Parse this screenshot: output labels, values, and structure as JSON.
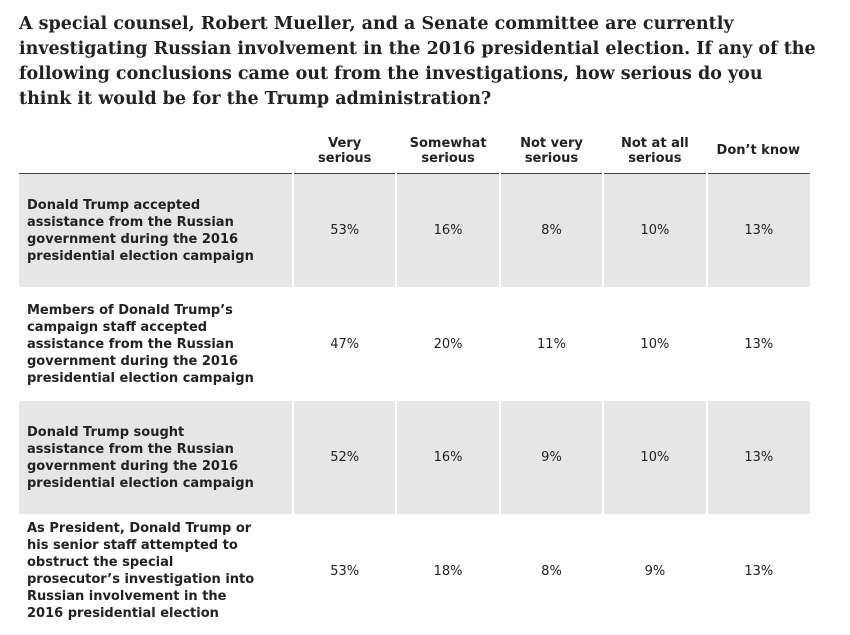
{
  "title": "A special counsel, Robert Mueller, and a Senate committee are currently investigating Russian involvement in the 2016 presidential election. If any of the following conclusions came out from the investigations, how serious do you think it would be for the Trump administration?",
  "columns": [
    "",
    "Very\nserious",
    "Somewhat\nserious",
    "Not very\nserious",
    "Not at all\nserious",
    "Don’t know"
  ],
  "rows": [
    {
      "label": "Donald Trump accepted assistance from the Russian government during the 2016 presidential election campaign",
      "cells": [
        "53%",
        "16%",
        "8%",
        "10%",
        "13%"
      ]
    },
    {
      "label": "Members of Donald Trump’s campaign staff accepted assistance from the Russian government during the 2016 presidential election campaign",
      "cells": [
        "47%",
        "20%",
        "11%",
        "10%",
        "13%"
      ]
    },
    {
      "label": "Donald Trump sought assistance from the Russian government during the 2016 presidential election campaign",
      "cells": [
        "52%",
        "16%",
        "9%",
        "10%",
        "13%"
      ]
    },
    {
      "label": "As President, Donald Trump or his senior staff attempted to obstruct the special prosecutor’s investigation into Russian involvement in the 2016 presidential election",
      "cells": [
        "53%",
        "18%",
        "8%",
        "9%",
        "13%"
      ]
    }
  ],
  "chart_data": {
    "type": "table",
    "title": "A special counsel, Robert Mueller, and a Senate committee are currently investigating Russian involvement in the 2016 presidential election. If any of the following conclusions came out from the investigations, how serious do you think it would be for the Trump administration?",
    "categories": [
      "Very serious",
      "Somewhat serious",
      "Not very serious",
      "Not at all serious",
      "Don’t know"
    ],
    "series": [
      {
        "name": "Donald Trump accepted assistance from the Russian government during the 2016 presidential election campaign",
        "values": [
          53,
          16,
          8,
          10,
          13
        ]
      },
      {
        "name": "Members of Donald Trump’s campaign staff accepted assistance from the Russian government during the 2016 presidential election campaign",
        "values": [
          47,
          20,
          11,
          10,
          13
        ]
      },
      {
        "name": "Donald Trump sought assistance from the Russian government during the 2016 presidential election campaign",
        "values": [
          52,
          16,
          9,
          10,
          13
        ]
      },
      {
        "name": "As President, Donald Trump or his senior staff attempted to obstruct the special prosecutor’s investigation into Russian involvement in the 2016 presidential election",
        "values": [
          53,
          18,
          8,
          9,
          13
        ]
      }
    ]
  },
  "colors": {
    "row_shade": "#e6e6e6",
    "text": "#222222",
    "header_rule": "#444444"
  }
}
